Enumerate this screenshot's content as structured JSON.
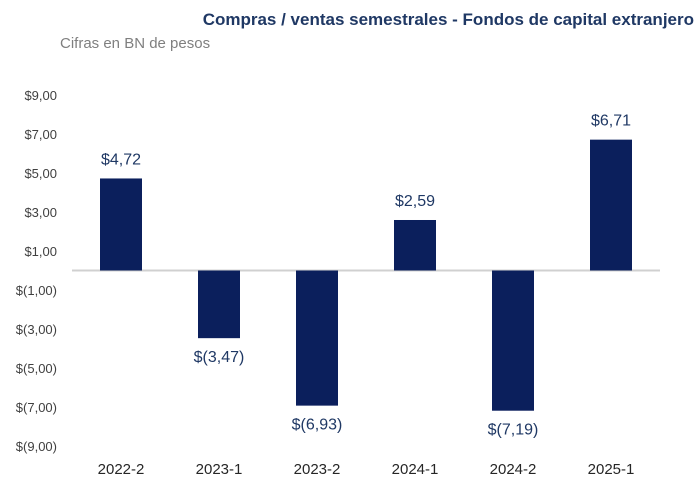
{
  "chart_data": {
    "type": "bar",
    "title": "Compras / ventas semestrales - Fondos de capital extranjero",
    "subtitle": "Cifras en BN de pesos",
    "categories": [
      "2022-2",
      "2023-1",
      "2023-2",
      "2024-1",
      "2024-2",
      "2025-1"
    ],
    "values": [
      4.72,
      -3.47,
      -6.93,
      2.59,
      -7.19,
      6.71
    ],
    "data_labels": [
      "$4,72",
      "$(3,47)",
      "$(6,93)",
      "$2,59",
      "$(7,19)",
      "$6,71"
    ],
    "y_ticks": [
      9,
      7,
      5,
      3,
      1,
      -1,
      -3,
      -5,
      -7,
      -9
    ],
    "y_tick_labels": [
      "$9,00",
      "$7,00",
      "$5,00",
      "$3,00",
      "$1,00",
      "$(1,00)",
      "$(3,00)",
      "$(5,00)",
      "$(7,00)",
      "$(9,00)"
    ],
    "ylim": [
      -9,
      9
    ],
    "grid": false,
    "legend": "none",
    "bar_color": "#0b1f5c",
    "zero_line_color": "#d0d0d0"
  }
}
